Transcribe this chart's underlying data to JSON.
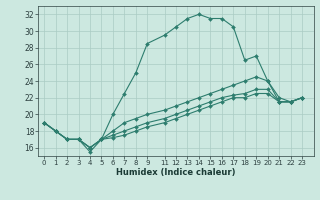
{
  "xlabel": "Humidex (Indice chaleur)",
  "background_color": "#cce8e0",
  "grid_color": "#aaccc4",
  "line_color": "#2d7d6e",
  "xlim": [
    -0.5,
    23.5
  ],
  "ylim": [
    15,
    33
  ],
  "yticks": [
    16,
    18,
    20,
    22,
    24,
    26,
    28,
    30,
    32
  ],
  "xtick_positions": [
    0,
    1,
    2,
    3,
    4,
    5,
    6,
    7,
    8,
    9,
    10.5,
    11.5,
    12.5,
    13.5,
    14.5,
    15.5,
    16.5,
    17.5,
    18.5,
    19.5,
    20.5,
    21.5,
    22.5
  ],
  "xtick_labels": [
    "0",
    "1",
    "2",
    "3",
    "4",
    "5",
    "6",
    "7",
    "8",
    "9",
    "11",
    "12",
    "13",
    "14",
    "15",
    "16",
    "17",
    "18",
    "19",
    "20",
    "21",
    "22",
    "23"
  ],
  "series": [
    {
      "x": [
        0,
        1,
        2,
        3,
        4,
        5,
        6,
        7,
        8,
        9,
        10.5,
        11.5,
        12.5,
        13.5,
        14.5,
        15.5,
        16.5,
        17.5,
        18.5,
        19.5,
        20.5,
        21.5,
        22.5
      ],
      "y": [
        19,
        18,
        17,
        17,
        15.5,
        17,
        20,
        22.5,
        25,
        28.5,
        29.5,
        30.5,
        31.5,
        32,
        31.5,
        31.5,
        30.5,
        26.5,
        27,
        24,
        21.5,
        21.5,
        22
      ]
    },
    {
      "x": [
        0,
        1,
        2,
        3,
        4,
        5,
        6,
        7,
        8,
        9,
        10.5,
        11.5,
        12.5,
        13.5,
        14.5,
        15.5,
        16.5,
        17.5,
        18.5,
        19.5,
        20.5,
        21.5,
        22.5
      ],
      "y": [
        19,
        18,
        17,
        17,
        16,
        17,
        18,
        19,
        19.5,
        20,
        20.5,
        21,
        21.5,
        22,
        22.5,
        23,
        23.5,
        24,
        24.5,
        24,
        22,
        21.5,
        22
      ]
    },
    {
      "x": [
        0,
        1,
        2,
        3,
        4,
        5,
        6,
        7,
        8,
        9,
        10.5,
        11.5,
        12.5,
        13.5,
        14.5,
        15.5,
        16.5,
        17.5,
        18.5,
        19.5,
        20.5,
        21.5,
        22.5
      ],
      "y": [
        19,
        18,
        17,
        17,
        16,
        17,
        17.5,
        18,
        18.5,
        19,
        19.5,
        20,
        20.5,
        21,
        21.5,
        22,
        22.3,
        22.5,
        23,
        23,
        21.5,
        21.5,
        22
      ]
    },
    {
      "x": [
        0,
        1,
        2,
        3,
        4,
        5,
        6,
        7,
        8,
        9,
        10.5,
        11.5,
        12.5,
        13.5,
        14.5,
        15.5,
        16.5,
        17.5,
        18.5,
        19.5,
        20.5,
        21.5,
        22.5
      ],
      "y": [
        19,
        18,
        17,
        17,
        16,
        17,
        17.2,
        17.5,
        18,
        18.5,
        19,
        19.5,
        20,
        20.5,
        21,
        21.5,
        22,
        22,
        22.5,
        22.5,
        21.5,
        21.5,
        22
      ]
    }
  ]
}
